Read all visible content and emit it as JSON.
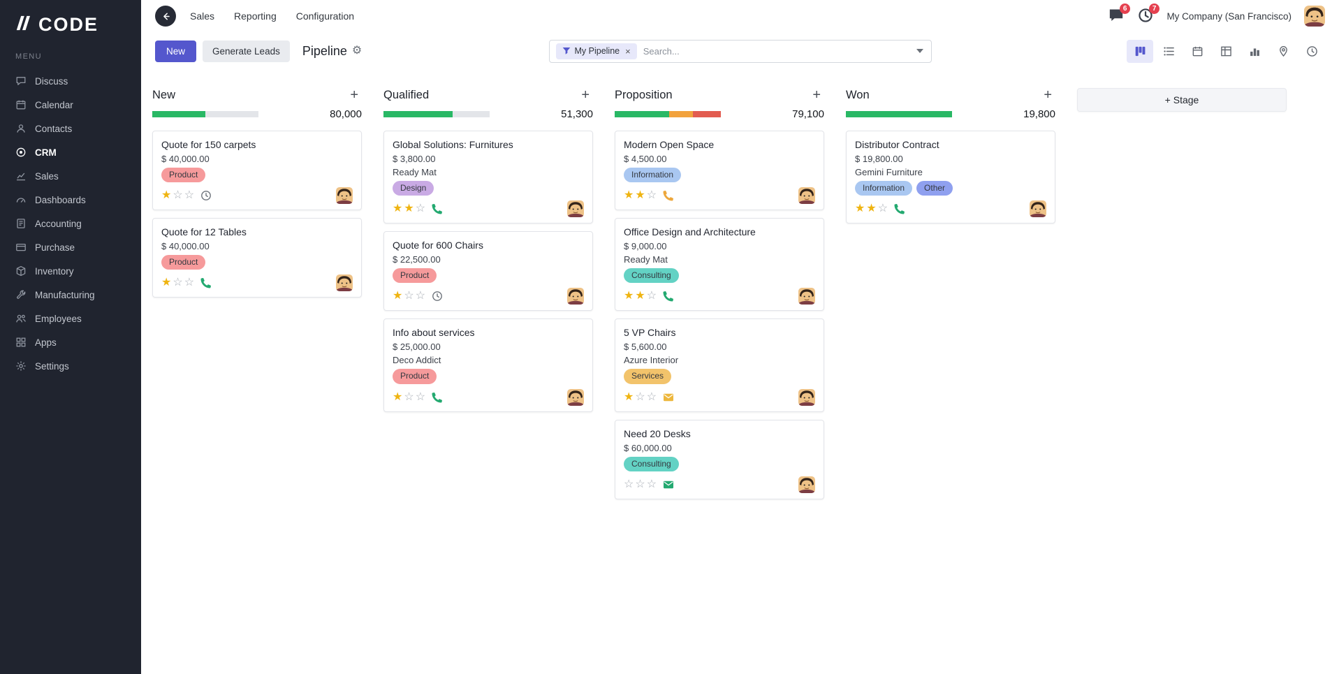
{
  "colors": {
    "accent": "#5457cd",
    "badge_red": "#e5404f",
    "progress_green": "#29b865",
    "progress_orange": "#f2a23c",
    "progress_red": "#e25c50"
  },
  "brand": {
    "logo": "CODE",
    "menu_label": "MENU"
  },
  "sidebar": {
    "items": [
      {
        "label": "Discuss",
        "icon": "chat-icon"
      },
      {
        "label": "Calendar",
        "icon": "calendar-icon"
      },
      {
        "label": "Contacts",
        "icon": "contact-icon"
      },
      {
        "label": "CRM",
        "icon": "target-icon",
        "active": true
      },
      {
        "label": "Sales",
        "icon": "line-chart-icon"
      },
      {
        "label": "Dashboards",
        "icon": "gauge-icon"
      },
      {
        "label": "Accounting",
        "icon": "ledger-icon"
      },
      {
        "label": "Purchase",
        "icon": "credit-card-icon"
      },
      {
        "label": "Inventory",
        "icon": "box-icon"
      },
      {
        "label": "Manufacturing",
        "icon": "wrench-icon"
      },
      {
        "label": "Employees",
        "icon": "people-icon"
      },
      {
        "label": "Apps",
        "icon": "grid-icon"
      },
      {
        "label": "Settings",
        "icon": "gear-icon"
      }
    ]
  },
  "topbar": {
    "nav": [
      {
        "label": "Sales"
      },
      {
        "label": "Reporting"
      },
      {
        "label": "Configuration"
      }
    ],
    "message_badge": "6",
    "activity_badge": "7",
    "company": "My Company (San Francisco)"
  },
  "controlbar": {
    "new_button": "New",
    "generate_leads_button": "Generate Leads",
    "title": "Pipeline",
    "filter_chip": "My Pipeline",
    "search_placeholder": "Search...",
    "view_switcher": [
      "kanban",
      "list",
      "calendar",
      "pivot",
      "graph",
      "map",
      "activity"
    ],
    "add_stage_button": "+ Stage"
  },
  "board": {
    "columns": [
      {
        "name": "New",
        "total": "80,000",
        "progress": [
          {
            "color": "#29b865",
            "pct": 50
          }
        ],
        "cards": [
          {
            "title": "Quote for 150 carpets",
            "amount": "$ 40,000.00",
            "tags": [
              {
                "label": "Product",
                "bg": "#f69a9b"
              }
            ],
            "stars": 1,
            "activity": {
              "icon": "clock",
              "color": "#6d737b"
            }
          },
          {
            "title": "Quote for 12 Tables",
            "amount": "$ 40,000.00",
            "tags": [
              {
                "label": "Product",
                "bg": "#f69a9b"
              }
            ],
            "stars": 1,
            "activity": {
              "icon": "phone",
              "color": "#23a970"
            }
          }
        ]
      },
      {
        "name": "Qualified",
        "total": "51,300",
        "progress": [
          {
            "color": "#29b865",
            "pct": 65
          }
        ],
        "cards": [
          {
            "title": "Global Solutions: Furnitures",
            "amount": "$ 3,800.00",
            "company": "Ready Mat",
            "tags": [
              {
                "label": "Design",
                "bg": "#c9aae4"
              }
            ],
            "stars": 2,
            "activity": {
              "icon": "phone",
              "color": "#23a970"
            }
          },
          {
            "title": "Quote for 600 Chairs",
            "amount": "$ 22,500.00",
            "tags": [
              {
                "label": "Product",
                "bg": "#f69a9b"
              }
            ],
            "stars": 1,
            "activity": {
              "icon": "clock",
              "color": "#6d737b"
            }
          },
          {
            "title": "Info about services",
            "amount": "$ 25,000.00",
            "company": "Deco Addict",
            "tags": [
              {
                "label": "Product",
                "bg": "#f69a9b"
              }
            ],
            "stars": 1,
            "activity": {
              "icon": "phone",
              "color": "#23a970"
            }
          }
        ]
      },
      {
        "name": "Proposition",
        "total": "79,100",
        "progress": [
          {
            "color": "#29b865",
            "pct": 51
          },
          {
            "color": "#f2a23c",
            "pct": 23
          },
          {
            "color": "#e25c50",
            "pct": 26
          }
        ],
        "cards": [
          {
            "title": "Modern Open Space",
            "amount": "$ 4,500.00",
            "tags": [
              {
                "label": "Information",
                "bg": "#a9c7f1"
              }
            ],
            "stars": 2,
            "activity": {
              "icon": "phone",
              "color": "#eda73c"
            }
          },
          {
            "title": "Office Design and Architecture",
            "amount": "$ 9,000.00",
            "company": "Ready Mat",
            "tags": [
              {
                "label": "Consulting",
                "bg": "#63d2c4"
              }
            ],
            "stars": 2,
            "activity": {
              "icon": "phone",
              "color": "#23a970"
            }
          },
          {
            "title": "5 VP Chairs",
            "amount": "$ 5,600.00",
            "company": "Azure Interior",
            "tags": [
              {
                "label": "Services",
                "bg": "#f2c36b"
              }
            ],
            "stars": 1,
            "activity": {
              "icon": "mail",
              "color": "#edb73d"
            }
          },
          {
            "title": "Need 20 Desks",
            "amount": "$ 60,000.00",
            "tags": [
              {
                "label": "Consulting",
                "bg": "#63d2c4"
              }
            ],
            "stars": 0,
            "activity": {
              "icon": "mail",
              "color": "#23a970"
            }
          }
        ]
      },
      {
        "name": "Won",
        "total": "19,800",
        "progress": [
          {
            "color": "#29b865",
            "pct": 100
          }
        ],
        "cards": [
          {
            "title": "Distributor Contract",
            "amount": "$ 19,800.00",
            "company": "Gemini Furniture",
            "tags": [
              {
                "label": "Information",
                "bg": "#a9c7f1"
              },
              {
                "label": "Other",
                "bg": "#8fa0ef"
              }
            ],
            "stars": 2,
            "activity": {
              "icon": "phone",
              "color": "#23a970"
            }
          }
        ]
      }
    ]
  }
}
